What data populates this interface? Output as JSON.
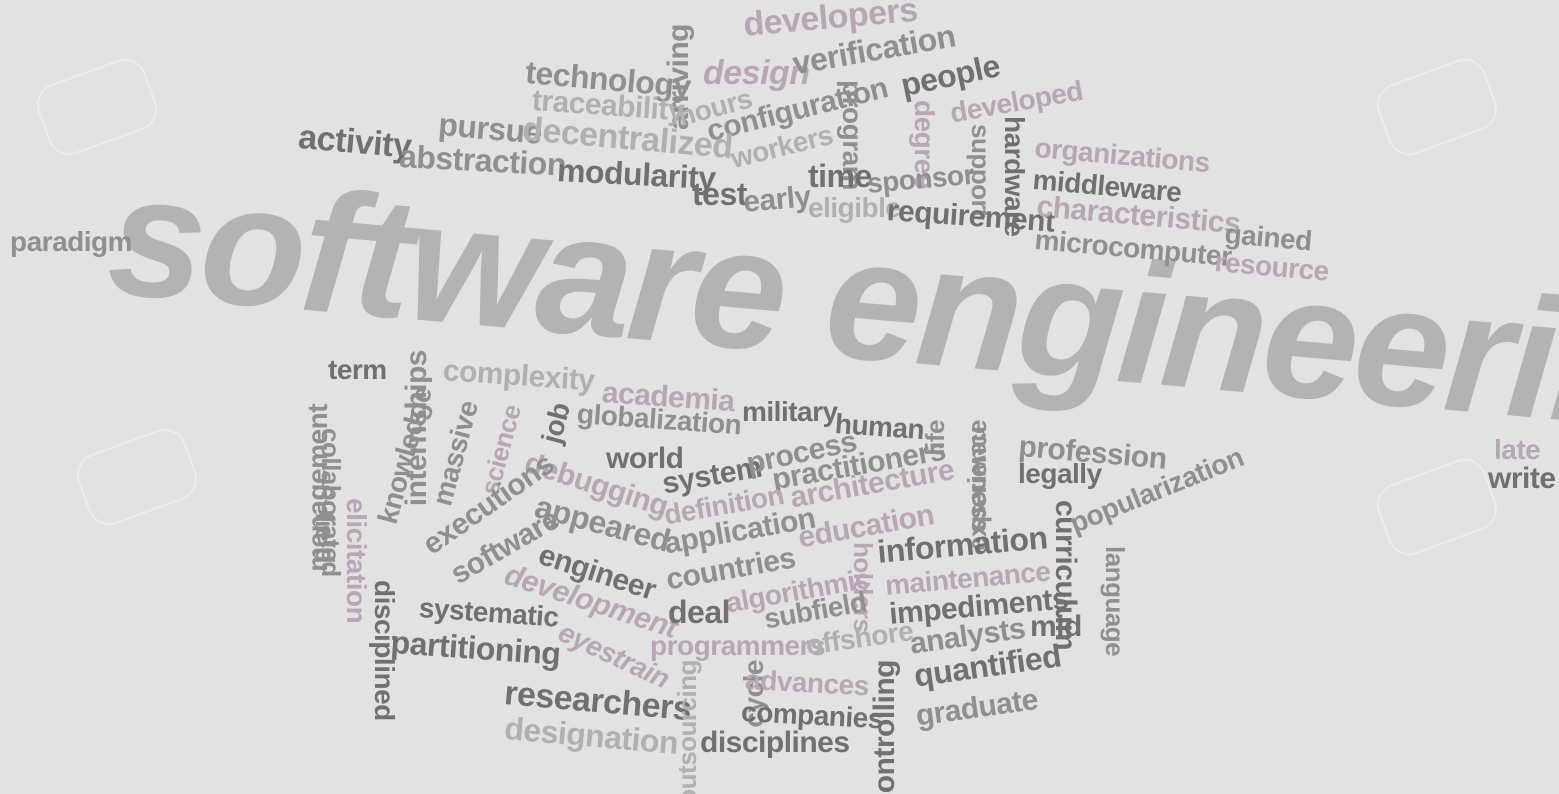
{
  "title": "software engineering",
  "colors": {
    "background": "#e2e2e2",
    "dark": "#707070",
    "mid": "#8f8f8f",
    "light": "#b0b0b0",
    "purple": "#b8a6b6"
  },
  "words": [
    {
      "key": "developers",
      "text": "developers"
    },
    {
      "key": "technology",
      "text": "technology"
    },
    {
      "key": "arriving",
      "text": "arriving"
    },
    {
      "key": "design",
      "text": "design"
    },
    {
      "key": "verification",
      "text": "verification"
    },
    {
      "key": "people",
      "text": "people"
    },
    {
      "key": "traceability",
      "text": "traceability"
    },
    {
      "key": "hours",
      "text": "hours"
    },
    {
      "key": "configuration",
      "text": "configuration"
    },
    {
      "key": "program",
      "text": "program"
    },
    {
      "key": "degree",
      "text": "degree"
    },
    {
      "key": "developed",
      "text": "developed"
    },
    {
      "key": "pursue",
      "text": "pursue"
    },
    {
      "key": "decentralized",
      "text": "decentralized"
    },
    {
      "key": "hardware",
      "text": "hardware"
    },
    {
      "key": "support",
      "text": "support"
    },
    {
      "key": "organizations",
      "text": "organizations"
    },
    {
      "key": "activity",
      "text": "activity"
    },
    {
      "key": "abstraction",
      "text": "abstraction"
    },
    {
      "key": "modularity",
      "text": "modularity"
    },
    {
      "key": "workers",
      "text": "workers"
    },
    {
      "key": "test",
      "text": "test"
    },
    {
      "key": "early",
      "text": "early"
    },
    {
      "key": "time",
      "text": "time"
    },
    {
      "key": "sponsor",
      "text": "sponsor"
    },
    {
      "key": "middleware",
      "text": "middleware"
    },
    {
      "key": "eligible",
      "text": "eligible"
    },
    {
      "key": "requirement",
      "text": "requirement"
    },
    {
      "key": "characteristics",
      "text": "characteristics"
    },
    {
      "key": "gained",
      "text": "gained"
    },
    {
      "key": "paradigm",
      "text": "paradigm"
    },
    {
      "key": "microcomputer",
      "text": "microcomputer"
    },
    {
      "key": "resource",
      "text": "resource"
    },
    {
      "key": "term",
      "text": "term"
    },
    {
      "key": "internships",
      "text": "internships"
    },
    {
      "key": "complexity",
      "text": "complexity"
    },
    {
      "key": "academia",
      "text": "academia"
    },
    {
      "key": "management",
      "text": "management"
    },
    {
      "key": "collaborated",
      "text": "collaborated"
    },
    {
      "key": "knowledge",
      "text": "knowledge"
    },
    {
      "key": "massive",
      "text": "massive"
    },
    {
      "key": "science",
      "text": "science"
    },
    {
      "key": "job",
      "text": "job"
    },
    {
      "key": "globalization",
      "text": "globalization"
    },
    {
      "key": "military",
      "text": "military"
    },
    {
      "key": "human",
      "text": "human"
    },
    {
      "key": "life",
      "text": "life"
    },
    {
      "key": "experience",
      "text": "experience"
    },
    {
      "key": "newness",
      "text": "newness"
    },
    {
      "key": "profession",
      "text": "profession"
    },
    {
      "key": "late",
      "text": "late"
    },
    {
      "key": "write",
      "text": "write"
    },
    {
      "key": "field",
      "text": "field"
    },
    {
      "key": "elicitation",
      "text": "elicitation"
    },
    {
      "key": "debugging",
      "text": "debugging"
    },
    {
      "key": "world",
      "text": "world"
    },
    {
      "key": "system",
      "text": "system"
    },
    {
      "key": "process",
      "text": "process"
    },
    {
      "key": "practitioners",
      "text": "practitioners"
    },
    {
      "key": "legally",
      "text": "legally"
    },
    {
      "key": "popularization",
      "text": "popularization"
    },
    {
      "key": "executions",
      "text": "executions"
    },
    {
      "key": "software",
      "text": "software"
    },
    {
      "key": "appeared",
      "text": "appeared"
    },
    {
      "key": "definition",
      "text": "definition"
    },
    {
      "key": "architecture",
      "text": "architecture"
    },
    {
      "key": "curriculum",
      "text": "curriculum"
    },
    {
      "key": "language",
      "text": "language"
    },
    {
      "key": "engineer",
      "text": "engineer"
    },
    {
      "key": "application",
      "text": "application"
    },
    {
      "key": "education",
      "text": "education"
    },
    {
      "key": "information",
      "text": "information"
    },
    {
      "key": "disciplined",
      "text": "disciplined"
    },
    {
      "key": "development",
      "text": "development"
    },
    {
      "key": "countries",
      "text": "countries"
    },
    {
      "key": "algorithmic",
      "text": "algorithmic"
    },
    {
      "key": "holders",
      "text": "holders"
    },
    {
      "key": "maintenance",
      "text": "maintenance"
    },
    {
      "key": "systematic",
      "text": "systematic"
    },
    {
      "key": "deal",
      "text": "deal"
    },
    {
      "key": "subfield",
      "text": "subfield"
    },
    {
      "key": "impediments",
      "text": "impediments"
    },
    {
      "key": "partitioning",
      "text": "partitioning"
    },
    {
      "key": "eyestrain",
      "text": "eyestrain"
    },
    {
      "key": "programmers",
      "text": "programmers"
    },
    {
      "key": "offshore",
      "text": "offshore"
    },
    {
      "key": "analysts",
      "text": "analysts"
    },
    {
      "key": "mid",
      "text": "mid"
    },
    {
      "key": "cycle",
      "text": "cycle"
    },
    {
      "key": "advances",
      "text": "advances"
    },
    {
      "key": "quantified",
      "text": "quantified"
    },
    {
      "key": "researchers",
      "text": "researchers"
    },
    {
      "key": "outsourcing",
      "text": "outsourcing"
    },
    {
      "key": "companies",
      "text": "companies"
    },
    {
      "key": "controlling",
      "text": "controlling"
    },
    {
      "key": "graduate",
      "text": "graduate"
    },
    {
      "key": "designation",
      "text": "designation"
    },
    {
      "key": "disciplines",
      "text": "disciplines"
    }
  ]
}
